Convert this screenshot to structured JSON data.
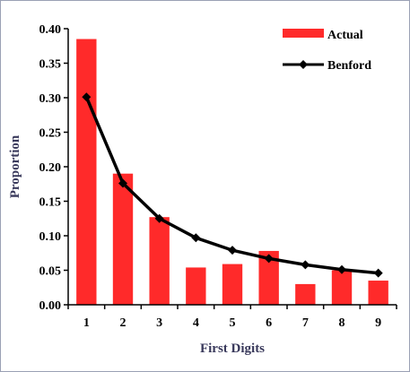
{
  "chart_data": {
    "type": "bar",
    "categories": [
      "1",
      "2",
      "3",
      "4",
      "5",
      "6",
      "7",
      "8",
      "9"
    ],
    "series": [
      {
        "name": "Actual",
        "kind": "bar",
        "color": "#ff2a2a",
        "values": [
          0.385,
          0.19,
          0.127,
          0.054,
          0.059,
          0.078,
          0.03,
          0.05,
          0.035
        ]
      },
      {
        "name": "Benford",
        "kind": "line",
        "color": "#000000",
        "values": [
          0.301,
          0.176,
          0.125,
          0.097,
          0.079,
          0.067,
          0.058,
          0.051,
          0.046
        ]
      }
    ],
    "xlabel": "First Digits",
    "ylabel": "Proportion",
    "ylim": [
      0,
      0.4
    ],
    "yticks": [
      "0.00",
      "0.05",
      "0.10",
      "0.15",
      "0.20",
      "0.25",
      "0.30",
      "0.35",
      "0.40"
    ],
    "grid": false,
    "legend_position": "top-right"
  }
}
